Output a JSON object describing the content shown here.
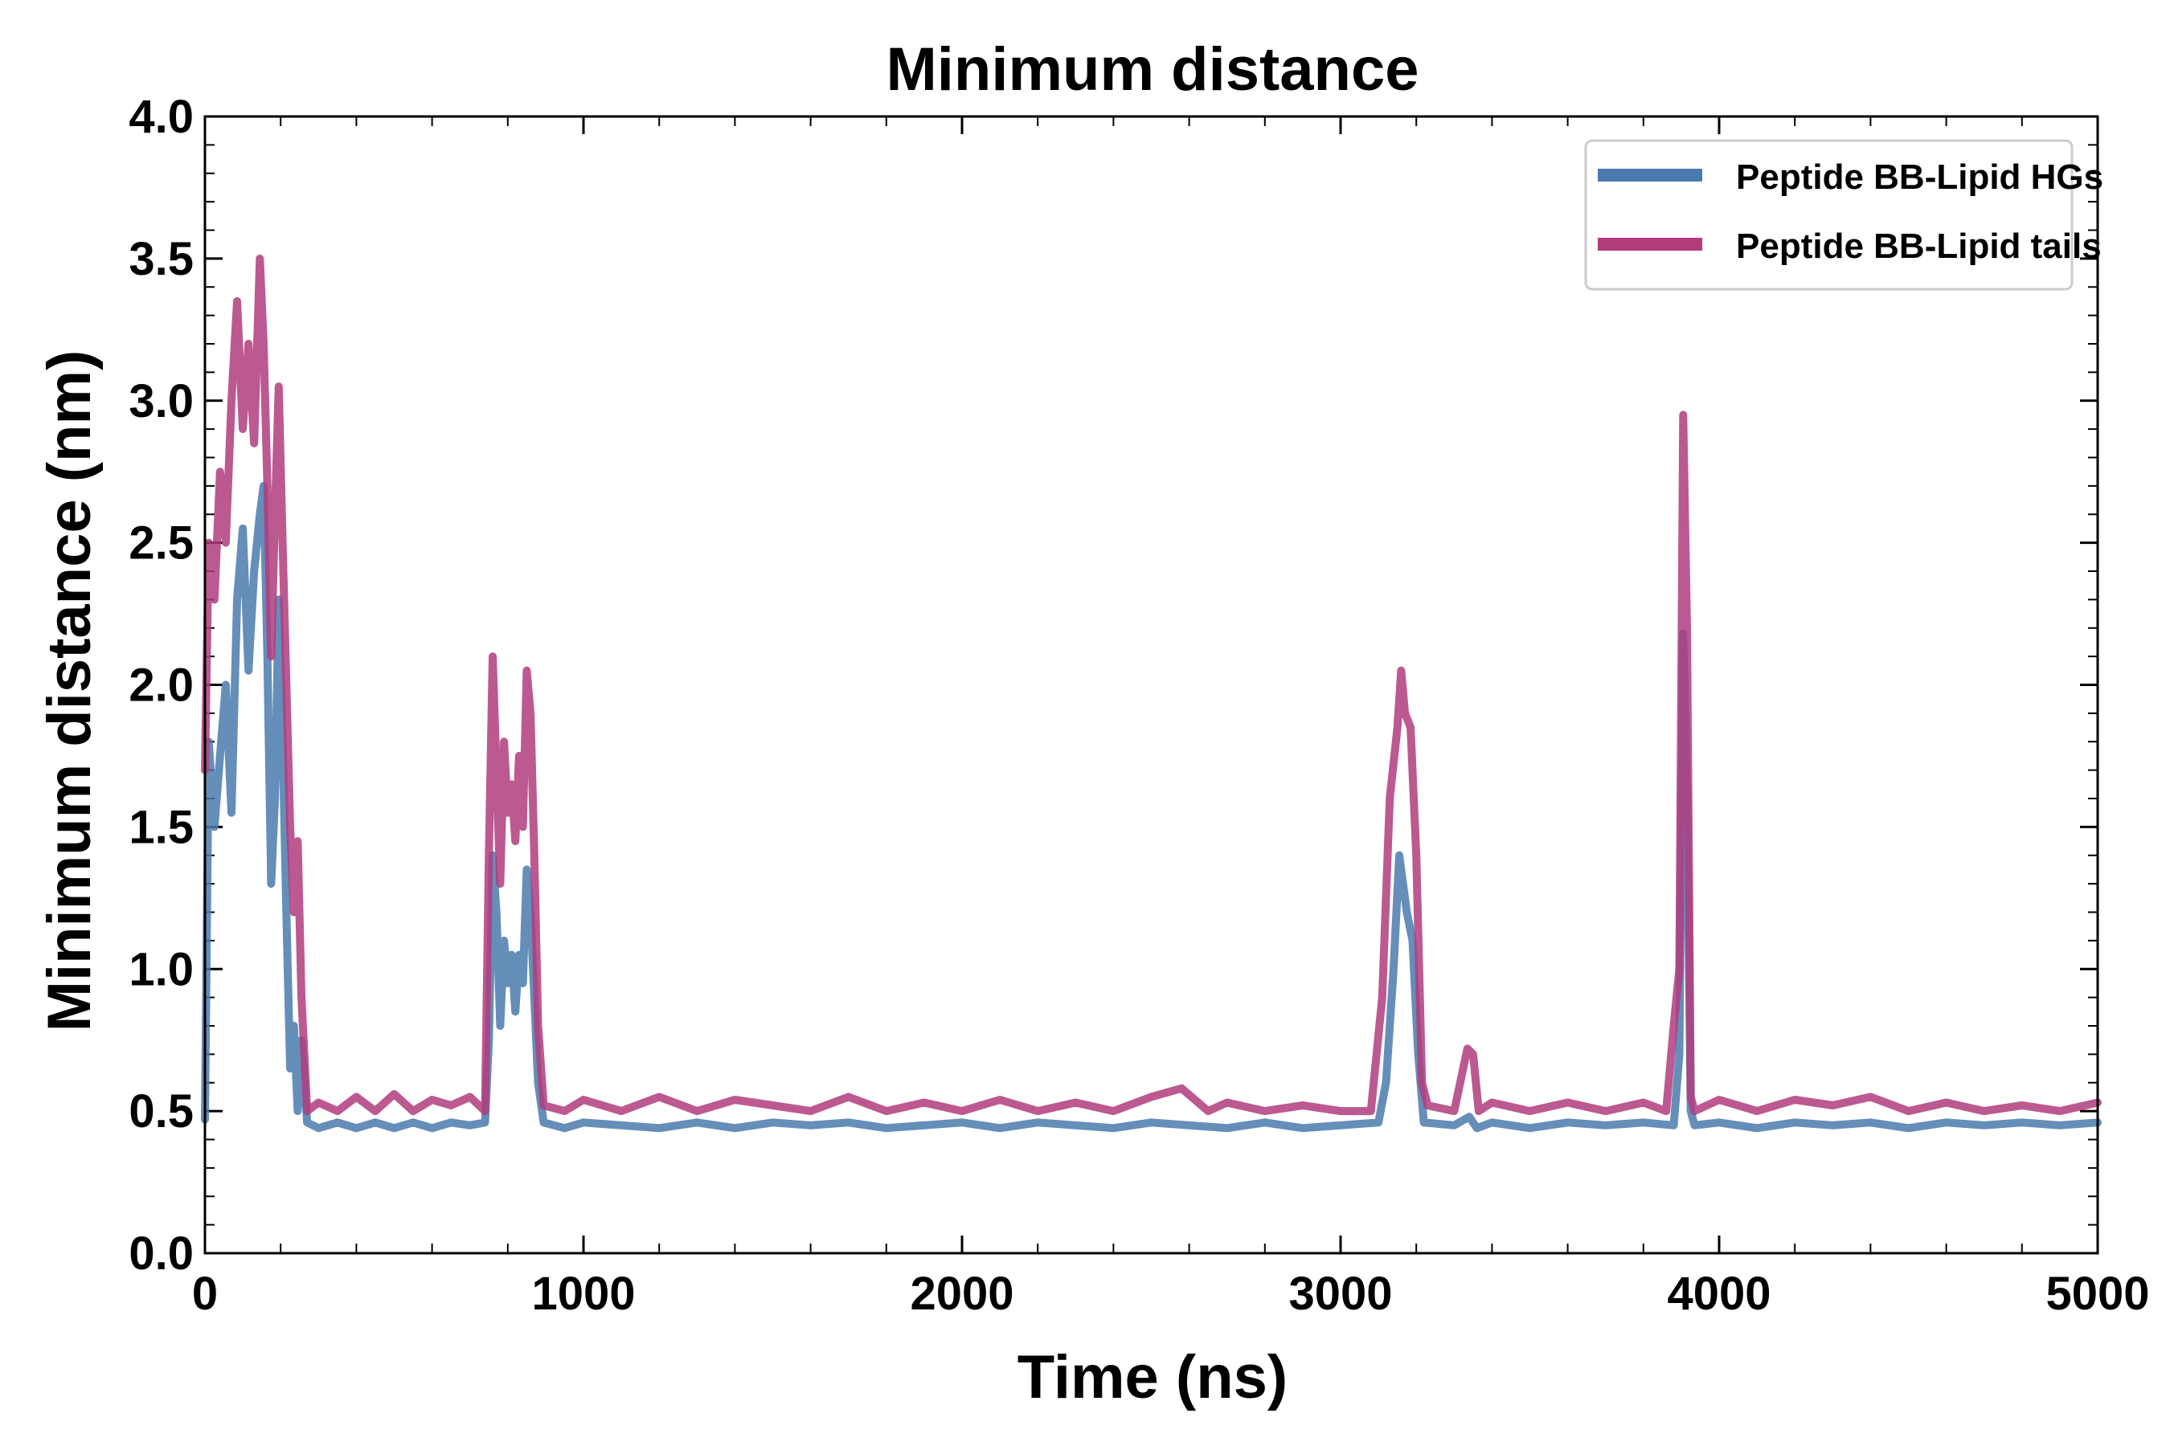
{
  "chart_data": {
    "type": "line",
    "title": "Minimum distance",
    "xlabel": "Time (ns)",
    "ylabel": "Minimum distance (nm)",
    "xlim": [
      0,
      5000
    ],
    "ylim": [
      0.0,
      4.0
    ],
    "xticks": [
      0,
      1000,
      2000,
      3000,
      4000,
      5000
    ],
    "xtick_labels": [
      "0",
      "1000",
      "2000",
      "3000",
      "4000",
      "5000"
    ],
    "yticks": [
      0.0,
      0.5,
      1.0,
      1.5,
      2.0,
      2.5,
      3.0,
      3.5,
      4.0
    ],
    "ytick_labels": [
      "0.0",
      "0.5",
      "1.0",
      "1.5",
      "2.0",
      "2.5",
      "3.0",
      "3.5",
      "4.0"
    ],
    "grid": false,
    "legend_position": "top-right",
    "series": [
      {
        "name": "Peptide BB-Lipid HGs",
        "color": "#4a7aad",
        "points": [
          [
            0,
            0.47
          ],
          [
            10,
            1.8
          ],
          [
            25,
            1.5
          ],
          [
            40,
            1.75
          ],
          [
            55,
            2.0
          ],
          [
            70,
            1.55
          ],
          [
            85,
            2.3
          ],
          [
            100,
            2.55
          ],
          [
            115,
            2.05
          ],
          [
            130,
            2.4
          ],
          [
            145,
            2.6
          ],
          [
            155,
            2.7
          ],
          [
            165,
            2.1
          ],
          [
            175,
            1.3
          ],
          [
            185,
            1.6
          ],
          [
            195,
            2.3
          ],
          [
            205,
            1.8
          ],
          [
            215,
            1.2
          ],
          [
            225,
            0.65
          ],
          [
            235,
            0.8
          ],
          [
            245,
            0.5
          ],
          [
            255,
            0.75
          ],
          [
            270,
            0.46
          ],
          [
            300,
            0.44
          ],
          [
            350,
            0.46
          ],
          [
            400,
            0.44
          ],
          [
            450,
            0.46
          ],
          [
            500,
            0.44
          ],
          [
            550,
            0.46
          ],
          [
            600,
            0.44
          ],
          [
            650,
            0.46
          ],
          [
            700,
            0.45
          ],
          [
            740,
            0.46
          ],
          [
            750,
            0.75
          ],
          [
            760,
            1.4
          ],
          [
            770,
            1.2
          ],
          [
            780,
            0.8
          ],
          [
            790,
            1.1
          ],
          [
            800,
            0.95
          ],
          [
            810,
            1.05
          ],
          [
            820,
            0.85
          ],
          [
            830,
            1.05
          ],
          [
            840,
            0.95
          ],
          [
            850,
            1.35
          ],
          [
            860,
            1.2
          ],
          [
            870,
            0.9
          ],
          [
            880,
            0.6
          ],
          [
            895,
            0.46
          ],
          [
            950,
            0.44
          ],
          [
            1000,
            0.46
          ],
          [
            1100,
            0.45
          ],
          [
            1200,
            0.44
          ],
          [
            1300,
            0.46
          ],
          [
            1400,
            0.44
          ],
          [
            1500,
            0.46
          ],
          [
            1600,
            0.45
          ],
          [
            1700,
            0.46
          ],
          [
            1800,
            0.44
          ],
          [
            1900,
            0.45
          ],
          [
            2000,
            0.46
          ],
          [
            2100,
            0.44
          ],
          [
            2200,
            0.46
          ],
          [
            2300,
            0.45
          ],
          [
            2400,
            0.44
          ],
          [
            2500,
            0.46
          ],
          [
            2600,
            0.45
          ],
          [
            2700,
            0.44
          ],
          [
            2800,
            0.46
          ],
          [
            2900,
            0.44
          ],
          [
            3000,
            0.45
          ],
          [
            3100,
            0.46
          ],
          [
            3120,
            0.6
          ],
          [
            3140,
            1.0
          ],
          [
            3155,
            1.4
          ],
          [
            3165,
            1.3
          ],
          [
            3175,
            1.2
          ],
          [
            3190,
            1.1
          ],
          [
            3205,
            0.7
          ],
          [
            3220,
            0.46
          ],
          [
            3300,
            0.45
          ],
          [
            3340,
            0.48
          ],
          [
            3360,
            0.44
          ],
          [
            3400,
            0.46
          ],
          [
            3500,
            0.44
          ],
          [
            3600,
            0.46
          ],
          [
            3700,
            0.45
          ],
          [
            3800,
            0.46
          ],
          [
            3880,
            0.45
          ],
          [
            3895,
            0.7
          ],
          [
            3905,
            2.18
          ],
          [
            3915,
            1.6
          ],
          [
            3925,
            0.5
          ],
          [
            3935,
            0.45
          ],
          [
            4000,
            0.46
          ],
          [
            4100,
            0.44
          ],
          [
            4200,
            0.46
          ],
          [
            4300,
            0.45
          ],
          [
            4400,
            0.46
          ],
          [
            4500,
            0.44
          ],
          [
            4600,
            0.46
          ],
          [
            4700,
            0.45
          ],
          [
            4800,
            0.46
          ],
          [
            4900,
            0.45
          ],
          [
            5000,
            0.46
          ]
        ]
      },
      {
        "name": "Peptide BB-Lipid tails",
        "color": "#b03c7c",
        "points": [
          [
            0,
            1.7
          ],
          [
            10,
            2.5
          ],
          [
            25,
            2.3
          ],
          [
            40,
            2.75
          ],
          [
            55,
            2.5
          ],
          [
            70,
            3.0
          ],
          [
            85,
            3.35
          ],
          [
            100,
            2.9
          ],
          [
            115,
            3.2
          ],
          [
            130,
            2.85
          ],
          [
            145,
            3.5
          ],
          [
            155,
            3.2
          ],
          [
            165,
            2.7
          ],
          [
            175,
            2.1
          ],
          [
            185,
            2.6
          ],
          [
            195,
            3.05
          ],
          [
            205,
            2.5
          ],
          [
            215,
            2.0
          ],
          [
            225,
            1.5
          ],
          [
            235,
            1.2
          ],
          [
            245,
            1.45
          ],
          [
            255,
            0.9
          ],
          [
            270,
            0.5
          ],
          [
            300,
            0.53
          ],
          [
            350,
            0.5
          ],
          [
            400,
            0.55
          ],
          [
            450,
            0.5
          ],
          [
            500,
            0.56
          ],
          [
            550,
            0.5
          ],
          [
            600,
            0.54
          ],
          [
            650,
            0.52
          ],
          [
            700,
            0.55
          ],
          [
            740,
            0.5
          ],
          [
            750,
            1.4
          ],
          [
            760,
            2.1
          ],
          [
            770,
            1.7
          ],
          [
            780,
            1.3
          ],
          [
            790,
            1.8
          ],
          [
            800,
            1.55
          ],
          [
            810,
            1.65
          ],
          [
            820,
            1.45
          ],
          [
            830,
            1.75
          ],
          [
            840,
            1.5
          ],
          [
            850,
            2.05
          ],
          [
            860,
            1.9
          ],
          [
            870,
            1.4
          ],
          [
            880,
            0.8
          ],
          [
            895,
            0.52
          ],
          [
            950,
            0.5
          ],
          [
            1000,
            0.54
          ],
          [
            1100,
            0.5
          ],
          [
            1200,
            0.55
          ],
          [
            1300,
            0.5
          ],
          [
            1400,
            0.54
          ],
          [
            1500,
            0.52
          ],
          [
            1600,
            0.5
          ],
          [
            1700,
            0.55
          ],
          [
            1800,
            0.5
          ],
          [
            1900,
            0.53
          ],
          [
            2000,
            0.5
          ],
          [
            2100,
            0.54
          ],
          [
            2200,
            0.5
          ],
          [
            2300,
            0.53
          ],
          [
            2400,
            0.5
          ],
          [
            2500,
            0.55
          ],
          [
            2580,
            0.58
          ],
          [
            2650,
            0.5
          ],
          [
            2700,
            0.53
          ],
          [
            2800,
            0.5
          ],
          [
            2900,
            0.52
          ],
          [
            3000,
            0.5
          ],
          [
            3080,
            0.5
          ],
          [
            3110,
            0.9
          ],
          [
            3130,
            1.6
          ],
          [
            3150,
            1.85
          ],
          [
            3160,
            2.05
          ],
          [
            3170,
            1.9
          ],
          [
            3185,
            1.85
          ],
          [
            3200,
            1.4
          ],
          [
            3215,
            0.6
          ],
          [
            3230,
            0.52
          ],
          [
            3300,
            0.5
          ],
          [
            3335,
            0.72
          ],
          [
            3350,
            0.7
          ],
          [
            3365,
            0.5
          ],
          [
            3400,
            0.53
          ],
          [
            3500,
            0.5
          ],
          [
            3600,
            0.53
          ],
          [
            3700,
            0.5
          ],
          [
            3800,
            0.53
          ],
          [
            3860,
            0.5
          ],
          [
            3880,
            0.8
          ],
          [
            3895,
            1.0
          ],
          [
            3905,
            2.95
          ],
          [
            3915,
            2.2
          ],
          [
            3925,
            0.55
          ],
          [
            3935,
            0.5
          ],
          [
            4000,
            0.54
          ],
          [
            4100,
            0.5
          ],
          [
            4200,
            0.54
          ],
          [
            4300,
            0.52
          ],
          [
            4400,
            0.55
          ],
          [
            4500,
            0.5
          ],
          [
            4600,
            0.53
          ],
          [
            4700,
            0.5
          ],
          [
            4800,
            0.52
          ],
          [
            4900,
            0.5
          ],
          [
            5000,
            0.53
          ]
        ]
      }
    ]
  }
}
